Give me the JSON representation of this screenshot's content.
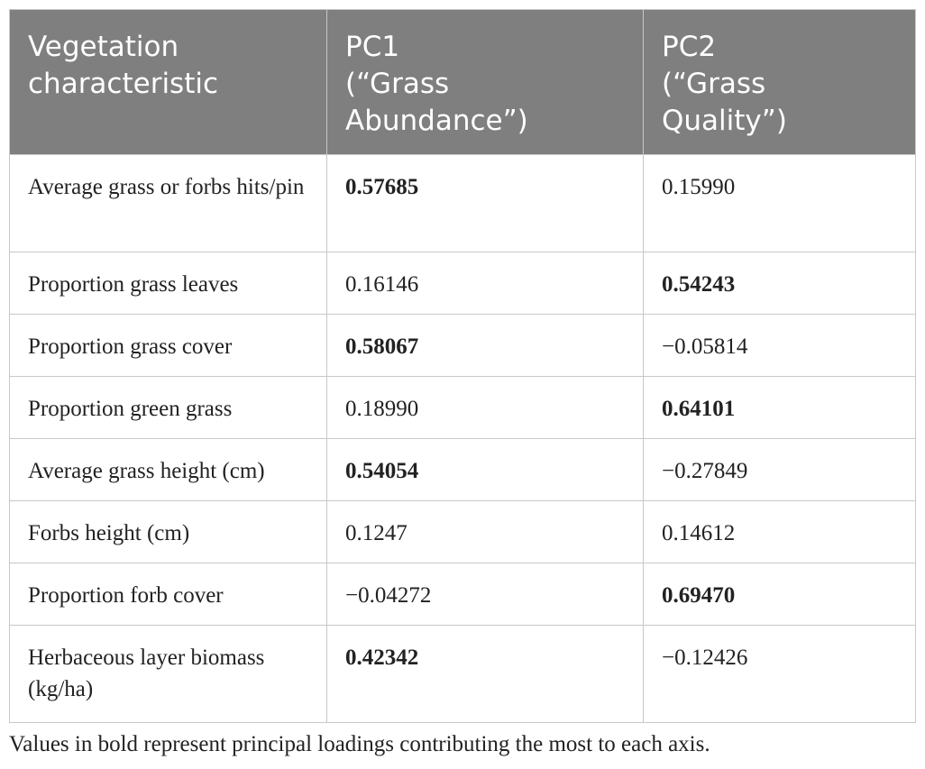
{
  "table": {
    "headers": [
      "Vegetation\ncharacteristic",
      "PC1\n(“Grass\nAbundance”)",
      "PC2\n(“Grass\nQuality”)"
    ],
    "rows": [
      {
        "characteristic": "Average grass or forbs hits/pin",
        "pc1": "0.57685",
        "pc2": "0.15990",
        "pc1_bold": true,
        "pc2_bold": false
      },
      {
        "characteristic": "Proportion grass leaves",
        "pc1": "0.16146",
        "pc2": "0.54243",
        "pc1_bold": false,
        "pc2_bold": true
      },
      {
        "characteristic": "Proportion grass cover",
        "pc1": "0.58067",
        "pc2": "−0.05814",
        "pc1_bold": true,
        "pc2_bold": false
      },
      {
        "characteristic": "Proportion green grass",
        "pc1": "0.18990",
        "pc2": "0.64101",
        "pc1_bold": false,
        "pc2_bold": true
      },
      {
        "characteristic": "Average grass height (cm)",
        "pc1": "0.54054",
        "pc2": "−0.27849",
        "pc1_bold": true,
        "pc2_bold": false
      },
      {
        "characteristic": "Forbs height (cm)",
        "pc1": "0.1247",
        "pc2": "0.14612",
        "pc1_bold": false,
        "pc2_bold": false
      },
      {
        "characteristic": "Proportion forb cover",
        "pc1": "−0.04272",
        "pc2": "0.69470",
        "pc1_bold": false,
        "pc2_bold": true
      },
      {
        "characteristic": "Herbaceous layer biomass (kg/ha)",
        "pc1": "0.42342",
        "pc2": "−0.12426",
        "pc1_bold": true,
        "pc2_bold": false
      }
    ]
  },
  "footnote": "Values in bold represent principal loadings contributing the most to each axis.",
  "colors": {
    "header_background": "#7f7f7f",
    "header_text": "#ffffff",
    "border": "#c8c8c8",
    "body_text": "#222222"
  }
}
